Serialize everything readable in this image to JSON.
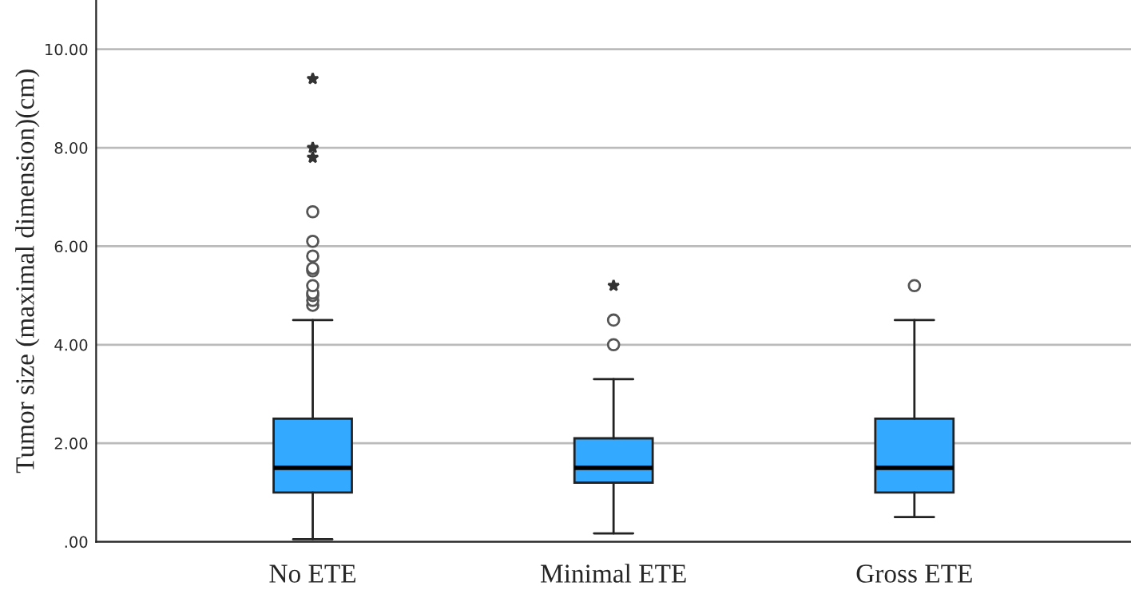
{
  "chart_data": {
    "type": "box",
    "ylabel": "Tumor size (maximal dimension)(cm)",
    "categories": [
      "No ETE",
      "Minimal ETE",
      "Gross ETE"
    ],
    "color": "#33aaff",
    "boxes": [
      {
        "low": 0.05,
        "q1": 1.0,
        "median": 1.5,
        "q3": 2.5,
        "high": 4.5,
        "outliers": [
          4.8,
          4.9,
          5.0,
          5.05,
          5.2,
          5.5,
          5.55,
          5.8,
          6.1,
          6.7,
          7.8,
          8.0,
          9.4
        ]
      },
      {
        "low": 0.17,
        "q1": 1.2,
        "median": 1.5,
        "q3": 2.1,
        "high": 3.3,
        "outliers": [
          4.0,
          4.5,
          5.2
        ]
      },
      {
        "low": 0.5,
        "q1": 1.0,
        "median": 1.5,
        "q3": 2.5,
        "high": 4.5,
        "outliers": [
          5.2
        ]
      }
    ],
    "ylim": [
      0,
      11
    ],
    "yticks": [
      {
        "value": 0,
        "label": ".00"
      },
      {
        "value": 2,
        "label": "2.00"
      },
      {
        "value": 4,
        "label": "4.00"
      },
      {
        "value": 6,
        "label": "6.00"
      },
      {
        "value": 8,
        "label": "8.00"
      },
      {
        "value": 10,
        "label": "10.00"
      }
    ],
    "grid": "y"
  }
}
